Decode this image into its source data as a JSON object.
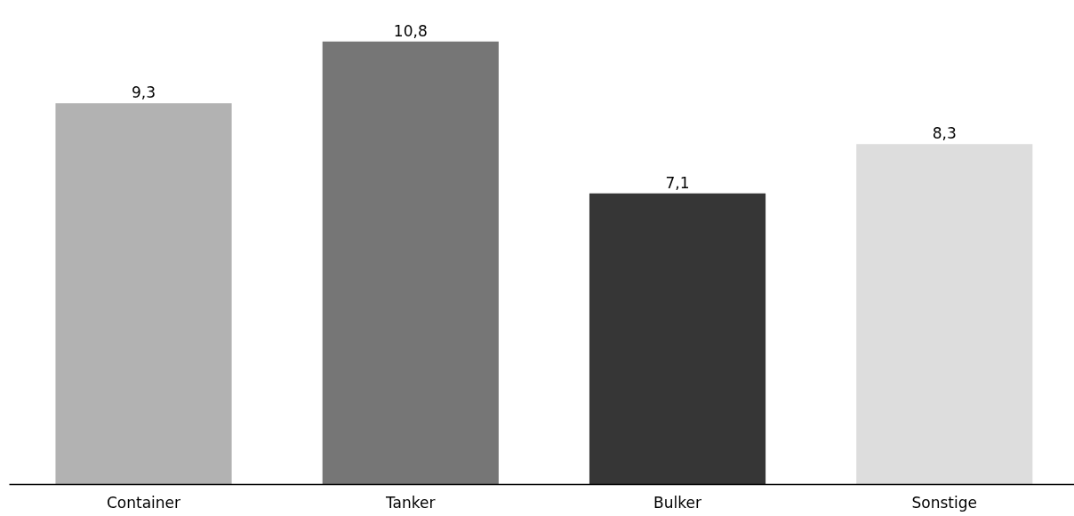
{
  "chart_data": {
    "type": "bar",
    "categories": [
      "Container",
      "Tanker",
      "Bulker",
      "Sonstige"
    ],
    "values": [
      9.3,
      10.8,
      7.1,
      8.3
    ],
    "colors": [
      "#b2b2b2",
      "#767676",
      "#363636",
      "#dddddd"
    ],
    "value_labels": [
      "9,3",
      "10,8",
      "7,1",
      "8,3"
    ],
    "grid": false,
    "tick_labels": "x"
  }
}
